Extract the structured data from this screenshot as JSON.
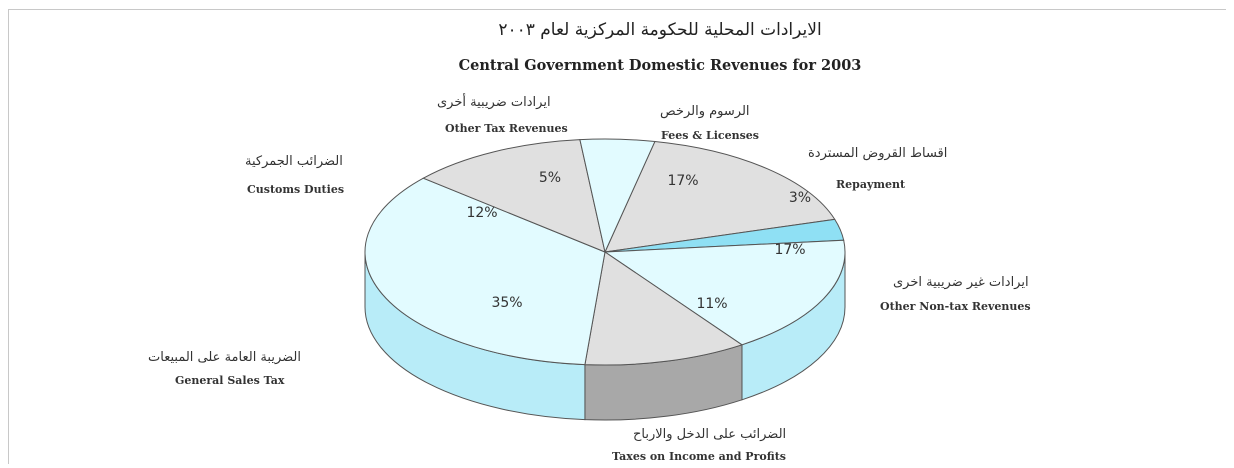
{
  "chart_data": {
    "type": "pie",
    "title": "Central Government Domestic Revenues for 2003",
    "title_ar": "الايرادات المحلية للحكومة المركزية لعام ٢٠٠٣",
    "slices": [
      {
        "label_en": "Fees & Licenses",
        "label_ar": "الرسوم والرخص",
        "value": 17,
        "display": "17%",
        "color": "#e0e0e0"
      },
      {
        "label_en": "Repayment",
        "label_ar": "اقساط القروض المستردة",
        "value": 3,
        "display": "3%",
        "color": "#8fe0f4"
      },
      {
        "label_en": "Other Non-tax Revenues",
        "label_ar": "ايرادات غير ضريبية اخرى",
        "value": 17,
        "display": "17%",
        "color": "#e2fbff"
      },
      {
        "label_en": "Taxes on Income and Profits",
        "label_ar": "الضرائب على الدخل والارباح",
        "value": 11,
        "display": "11%",
        "color": "#e0e0e0"
      },
      {
        "label_en": "General Sales Tax",
        "label_ar": "الضريبة العامة على المبيعات",
        "value": 35,
        "display": "35%",
        "color": "#e2fbff"
      },
      {
        "label_en": "Customs Duties",
        "label_ar": "الضرائب الجمركية",
        "value": 12,
        "display": "12%",
        "color": "#e0e0e0"
      },
      {
        "label_en": "Other Tax Revenues",
        "label_ar": "ايرادات ضريبية أخرى",
        "value": 5,
        "display": "5%",
        "color": "#e2fbff"
      }
    ],
    "legend": "none"
  }
}
